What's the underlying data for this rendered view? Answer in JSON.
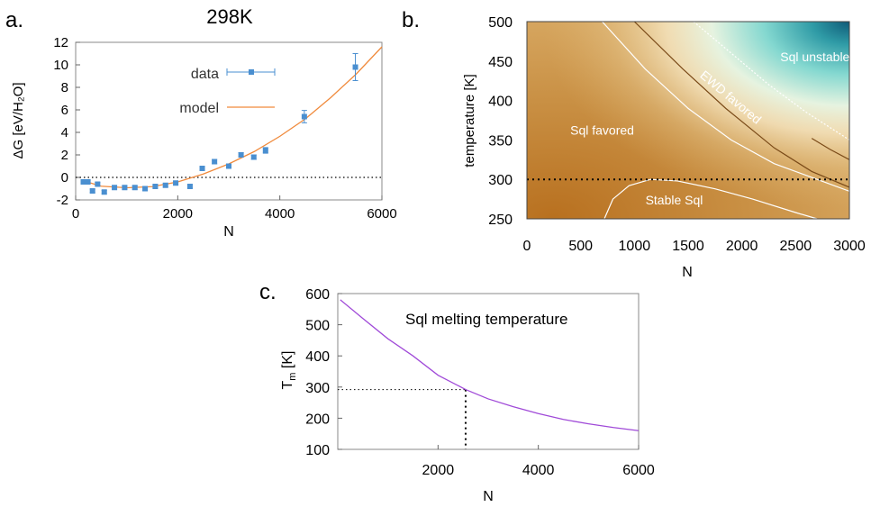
{
  "chart_data": [
    {
      "panel_label": "a.",
      "type": "scatter",
      "title": "298K",
      "xlabel": "N",
      "ylabel": "ΔG [eV/H₂O]",
      "xlim": [
        0,
        6000
      ],
      "ylim": [
        -2,
        12
      ],
      "xticks": [
        0,
        2000,
        4000,
        6000
      ],
      "yticks": [
        -2,
        0,
        2,
        4,
        6,
        8,
        10,
        12
      ],
      "reference_line": {
        "y": 0,
        "style": "dotted"
      },
      "legend": {
        "placement": "top-center",
        "entries": [
          "data",
          "model"
        ]
      },
      "series": [
        {
          "name": "data",
          "kind": "points-with-errorbars",
          "color": "#4a8fd0",
          "points": [
            {
              "x": 150,
              "y": -0.4,
              "err": 0.15
            },
            {
              "x": 240,
              "y": -0.4,
              "err": 0.15
            },
            {
              "x": 330,
              "y": -1.2,
              "err": 0.15
            },
            {
              "x": 430,
              "y": -0.6,
              "err": 0.15
            },
            {
              "x": 560,
              "y": -1.3,
              "err": 0.15
            },
            {
              "x": 760,
              "y": -0.9,
              "err": 0.15
            },
            {
              "x": 960,
              "y": -0.9,
              "err": 0.15
            },
            {
              "x": 1160,
              "y": -0.9,
              "err": 0.15
            },
            {
              "x": 1360,
              "y": -1.0,
              "err": 0.15
            },
            {
              "x": 1560,
              "y": -0.8,
              "err": 0.15
            },
            {
              "x": 1760,
              "y": -0.7,
              "err": 0.15
            },
            {
              "x": 1960,
              "y": -0.5,
              "err": 0.15
            },
            {
              "x": 2240,
              "y": -0.8,
              "err": 0.15
            },
            {
              "x": 2480,
              "y": 0.8,
              "err": 0.15
            },
            {
              "x": 2720,
              "y": 1.4,
              "err": 0.2
            },
            {
              "x": 3000,
              "y": 1.0,
              "err": 0.2
            },
            {
              "x": 3240,
              "y": 2.0,
              "err": 0.2
            },
            {
              "x": 3490,
              "y": 1.8,
              "err": 0.2
            },
            {
              "x": 3720,
              "y": 2.4,
              "err": 0.25
            },
            {
              "x": 4480,
              "y": 5.4,
              "err": 0.55
            },
            {
              "x": 5480,
              "y": 9.8,
              "err": 1.2
            }
          ]
        },
        {
          "name": "model",
          "kind": "line",
          "color": "#f08a3c",
          "points": [
            {
              "x": 150,
              "y": -0.3
            },
            {
              "x": 500,
              "y": -0.78
            },
            {
              "x": 1000,
              "y": -0.92
            },
            {
              "x": 1500,
              "y": -0.82
            },
            {
              "x": 2000,
              "y": -0.4
            },
            {
              "x": 2500,
              "y": 0.3
            },
            {
              "x": 3000,
              "y": 1.2
            },
            {
              "x": 3500,
              "y": 2.3
            },
            {
              "x": 4000,
              "y": 3.65
            },
            {
              "x": 4500,
              "y": 5.2
            },
            {
              "x": 5000,
              "y": 7.1
            },
            {
              "x": 5500,
              "y": 9.2
            },
            {
              "x": 6000,
              "y": 11.6
            }
          ]
        }
      ]
    },
    {
      "panel_label": "b.",
      "type": "heatmap",
      "xlabel": "N",
      "ylabel": "temperature [K]",
      "xlim": [
        0,
        3000
      ],
      "ylim": [
        250,
        500
      ],
      "xticks": [
        0,
        500,
        1000,
        1500,
        2000,
        2500,
        3000
      ],
      "yticks": [
        250,
        300,
        350,
        400,
        450,
        500
      ],
      "colormap": [
        "#b87322",
        "#d9a45a",
        "#f5e6bf",
        "#bfe8e0",
        "#5fc4c0",
        "#13607a"
      ],
      "reference_line": {
        "y": 300,
        "style": "dotted"
      },
      "region_labels": [
        {
          "text": "Sql unstable",
          "x": 2680,
          "y": 450
        },
        {
          "text": "EWD favored",
          "x": 1870,
          "y": 400,
          "rotation_deg": 40
        },
        {
          "text": "Sql favored",
          "x": 700,
          "y": 357
        },
        {
          "text": "Stable Sql",
          "x": 1370,
          "y": 268
        }
      ],
      "contours": [
        {
          "color": "#ffffff",
          "style": "solid",
          "points": [
            [
              700,
              500
            ],
            [
              1100,
              440
            ],
            [
              1500,
              390
            ],
            [
              1900,
              350
            ],
            [
              2300,
              320
            ],
            [
              2700,
              300
            ],
            [
              3000,
              285
            ]
          ]
        },
        {
          "color": "#ffffff",
          "style": "dotted",
          "points": [
            [
              1550,
              500
            ],
            [
              1900,
              460
            ],
            [
              2250,
              420
            ],
            [
              2600,
              385
            ],
            [
              3000,
              350
            ]
          ]
        },
        {
          "color": "#7a4a18",
          "style": "solid",
          "points": [
            [
              1000,
              500
            ],
            [
              1450,
              440
            ],
            [
              1850,
              390
            ],
            [
              2300,
              340
            ],
            [
              2650,
              310
            ],
            [
              3000,
              290
            ]
          ]
        },
        {
          "color": "#7a4a18",
          "style": "solid",
          "points": [
            [
              2650,
              352
            ],
            [
              2820,
              338
            ],
            [
              3000,
              325
            ]
          ]
        },
        {
          "color": "#ffffff",
          "style": "solid",
          "points": [
            [
              720,
              250
            ],
            [
              800,
              275
            ],
            [
              950,
              292
            ],
            [
              1150,
              300
            ],
            [
              1400,
              298
            ],
            [
              1750,
              288
            ],
            [
              2100,
              275
            ],
            [
              2500,
              258
            ],
            [
              2700,
              250
            ]
          ]
        }
      ]
    },
    {
      "panel_label": "c.",
      "type": "line",
      "annotation": "Sql melting temperature",
      "xlabel": "N",
      "ylabel": "T_m [K]",
      "xlim": [
        0,
        6000
      ],
      "ylim": [
        100,
        600
      ],
      "xticks": [
        2000,
        4000,
        6000
      ],
      "yticks": [
        100,
        200,
        300,
        400,
        500,
        600
      ],
      "marker": {
        "x": 2550,
        "y": 292,
        "style": "dotted"
      },
      "series": [
        {
          "color": "#a04ad8",
          "points": [
            {
              "x": 50,
              "y": 580
            },
            {
              "x": 500,
              "y": 520
            },
            {
              "x": 1000,
              "y": 455
            },
            {
              "x": 1500,
              "y": 400
            },
            {
              "x": 2000,
              "y": 338
            },
            {
              "x": 2550,
              "y": 292
            },
            {
              "x": 3000,
              "y": 262
            },
            {
              "x": 3500,
              "y": 237
            },
            {
              "x": 4000,
              "y": 215
            },
            {
              "x": 4500,
              "y": 196
            },
            {
              "x": 5000,
              "y": 182
            },
            {
              "x": 5500,
              "y": 170
            },
            {
              "x": 6000,
              "y": 160
            }
          ]
        }
      ]
    }
  ]
}
